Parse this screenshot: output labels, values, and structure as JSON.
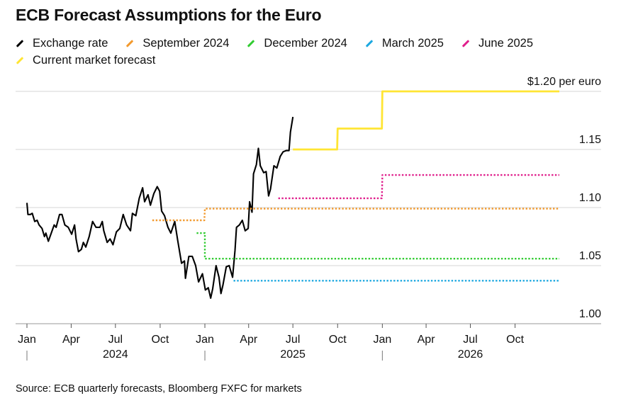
{
  "chart_data": {
    "type": "line",
    "title": "ECB Forecast Assumptions for the Euro",
    "y_unit_label": "$1.20 per euro",
    "ylim": [
      1.0,
      1.2
    ],
    "y_ticks": [
      {
        "value": 1.2,
        "label": ""
      },
      {
        "value": 1.15,
        "label": "1.15"
      },
      {
        "value": 1.1,
        "label": "1.10"
      },
      {
        "value": 1.05,
        "label": "1.05"
      },
      {
        "value": 1.0,
        "label": "1.00"
      }
    ],
    "x_range": [
      "2024-01-01",
      "2026-12-31"
    ],
    "x_month_ticks": [
      {
        "date": "2024-01-01",
        "label": "Jan"
      },
      {
        "date": "2024-04-01",
        "label": "Apr"
      },
      {
        "date": "2024-07-01",
        "label": "Jul"
      },
      {
        "date": "2024-10-01",
        "label": "Oct"
      },
      {
        "date": "2025-01-01",
        "label": "Jan"
      },
      {
        "date": "2025-04-01",
        "label": "Apr"
      },
      {
        "date": "2025-07-01",
        "label": "Jul"
      },
      {
        "date": "2025-10-01",
        "label": "Oct"
      },
      {
        "date": "2026-01-01",
        "label": "Jan"
      },
      {
        "date": "2026-04-01",
        "label": "Apr"
      },
      {
        "date": "2026-07-01",
        "label": "Jul"
      },
      {
        "date": "2026-10-01",
        "label": "Oct"
      }
    ],
    "x_year_labels": [
      {
        "date": "2024-07-01",
        "label": "2024"
      },
      {
        "date": "2025-07-01",
        "label": "2025"
      },
      {
        "date": "2026-07-01",
        "label": "2026"
      }
    ],
    "x_year_separators": [
      "2024-01-01",
      "2025-01-01",
      "2026-01-01"
    ],
    "grid": "horizontal",
    "legend_position": "top",
    "series": [
      {
        "name": "Exchange rate",
        "color": "#000000",
        "style": "solid",
        "points": [
          [
            "2024-01-01",
            1.104
          ],
          [
            "2024-01-03",
            1.094
          ],
          [
            "2024-01-08",
            1.094
          ],
          [
            "2024-01-12",
            1.095
          ],
          [
            "2024-01-17",
            1.088
          ],
          [
            "2024-01-22",
            1.089
          ],
          [
            "2024-01-26",
            1.085
          ],
          [
            "2024-02-01",
            1.082
          ],
          [
            "2024-02-06",
            1.075
          ],
          [
            "2024-02-09",
            1.078
          ],
          [
            "2024-02-14",
            1.071
          ],
          [
            "2024-02-20",
            1.078
          ],
          [
            "2024-02-26",
            1.085
          ],
          [
            "2024-03-01",
            1.083
          ],
          [
            "2024-03-08",
            1.094
          ],
          [
            "2024-03-13",
            1.094
          ],
          [
            "2024-03-19",
            1.085
          ],
          [
            "2024-03-26",
            1.083
          ],
          [
            "2024-04-02",
            1.077
          ],
          [
            "2024-04-08",
            1.085
          ],
          [
            "2024-04-11",
            1.073
          ],
          [
            "2024-04-16",
            1.062
          ],
          [
            "2024-04-22",
            1.064
          ],
          [
            "2024-04-26",
            1.07
          ],
          [
            "2024-05-01",
            1.066
          ],
          [
            "2024-05-08",
            1.075
          ],
          [
            "2024-05-15",
            1.088
          ],
          [
            "2024-05-22",
            1.083
          ],
          [
            "2024-05-30",
            1.083
          ],
          [
            "2024-06-04",
            1.088
          ],
          [
            "2024-06-07",
            1.08
          ],
          [
            "2024-06-14",
            1.07
          ],
          [
            "2024-06-20",
            1.073
          ],
          [
            "2024-06-26",
            1.068
          ],
          [
            "2024-07-03",
            1.079
          ],
          [
            "2024-07-10",
            1.082
          ],
          [
            "2024-07-17",
            1.094
          ],
          [
            "2024-07-24",
            1.085
          ],
          [
            "2024-08-01",
            1.08
          ],
          [
            "2024-08-05",
            1.095
          ],
          [
            "2024-08-12",
            1.093
          ],
          [
            "2024-08-19",
            1.108
          ],
          [
            "2024-08-26",
            1.117
          ],
          [
            "2024-08-30",
            1.105
          ],
          [
            "2024-09-06",
            1.111
          ],
          [
            "2024-09-11",
            1.102
          ],
          [
            "2024-09-18",
            1.112
          ],
          [
            "2024-09-25",
            1.118
          ],
          [
            "2024-09-30",
            1.114
          ],
          [
            "2024-10-04",
            1.097
          ],
          [
            "2024-10-10",
            1.093
          ],
          [
            "2024-10-17",
            1.083
          ],
          [
            "2024-10-23",
            1.078
          ],
          [
            "2024-10-31",
            1.088
          ],
          [
            "2024-11-06",
            1.072
          ],
          [
            "2024-11-14",
            1.052
          ],
          [
            "2024-11-20",
            1.054
          ],
          [
            "2024-11-22",
            1.039
          ],
          [
            "2024-11-29",
            1.058
          ],
          [
            "2024-12-06",
            1.058
          ],
          [
            "2024-12-13",
            1.05
          ],
          [
            "2024-12-19",
            1.036
          ],
          [
            "2024-12-27",
            1.043
          ],
          [
            "2025-01-02",
            1.029
          ],
          [
            "2025-01-08",
            1.031
          ],
          [
            "2025-01-13",
            1.022
          ],
          [
            "2025-01-17",
            1.03
          ],
          [
            "2025-01-24",
            1.05
          ],
          [
            "2025-01-30",
            1.04
          ],
          [
            "2025-02-03",
            1.026
          ],
          [
            "2025-02-07",
            1.033
          ],
          [
            "2025-02-14",
            1.049
          ],
          [
            "2025-02-20",
            1.05
          ],
          [
            "2025-02-27",
            1.04
          ],
          [
            "2025-03-04",
            1.063
          ],
          [
            "2025-03-07",
            1.083
          ],
          [
            "2025-03-13",
            1.085
          ],
          [
            "2025-03-19",
            1.089
          ],
          [
            "2025-03-25",
            1.08
          ],
          [
            "2025-03-31",
            1.082
          ],
          [
            "2025-04-03",
            1.105
          ],
          [
            "2025-04-08",
            1.096
          ],
          [
            "2025-04-11",
            1.129
          ],
          [
            "2025-04-17",
            1.137
          ],
          [
            "2025-04-21",
            1.151
          ],
          [
            "2025-04-25",
            1.136
          ],
          [
            "2025-05-02",
            1.13
          ],
          [
            "2025-05-07",
            1.131
          ],
          [
            "2025-05-12",
            1.11
          ],
          [
            "2025-05-16",
            1.116
          ],
          [
            "2025-05-23",
            1.136
          ],
          [
            "2025-05-29",
            1.134
          ],
          [
            "2025-06-05",
            1.144
          ],
          [
            "2025-06-11",
            1.148
          ],
          [
            "2025-06-17",
            1.149
          ],
          [
            "2025-06-23",
            1.149
          ],
          [
            "2025-06-26",
            1.165
          ],
          [
            "2025-07-01",
            1.178
          ]
        ]
      },
      {
        "name": "September 2024",
        "color": "#f29a2e",
        "style": "dotted",
        "points": [
          [
            "2024-09-15",
            1.089
          ],
          [
            "2024-12-31",
            1.089
          ],
          [
            "2025-01-01",
            1.099
          ],
          [
            "2026-12-31",
            1.099
          ]
        ]
      },
      {
        "name": "December 2024",
        "color": "#33cc33",
        "style": "dotted",
        "points": [
          [
            "2024-12-15",
            1.078
          ],
          [
            "2025-01-01",
            1.078
          ],
          [
            "2025-01-01",
            1.056
          ],
          [
            "2026-12-31",
            1.056
          ]
        ]
      },
      {
        "name": "March 2025",
        "color": "#1ca8e0",
        "style": "dotted",
        "points": [
          [
            "2025-03-01",
            1.037
          ],
          [
            "2026-12-31",
            1.037
          ]
        ]
      },
      {
        "name": "June 2025",
        "color": "#e01f8c",
        "style": "dotted",
        "points": [
          [
            "2025-06-01",
            1.108
          ],
          [
            "2025-12-31",
            1.108
          ],
          [
            "2026-01-01",
            1.128
          ],
          [
            "2026-12-31",
            1.128
          ]
        ]
      },
      {
        "name": "Current market forecast",
        "color": "#ffe534",
        "style": "solid",
        "points": [
          [
            "2025-07-01",
            1.15
          ],
          [
            "2025-09-30",
            1.15
          ],
          [
            "2025-10-01",
            1.168
          ],
          [
            "2025-12-31",
            1.168
          ],
          [
            "2026-01-01",
            1.2
          ],
          [
            "2026-12-31",
            1.2
          ]
        ]
      }
    ]
  },
  "legend": {
    "rows": [
      [
        {
          "label": "Exchange rate",
          "color": "#000000"
        },
        {
          "label": "September 2024",
          "color": "#f29a2e"
        },
        {
          "label": "December 2024",
          "color": "#33cc33"
        },
        {
          "label": "March 2025",
          "color": "#1ca8e0"
        },
        {
          "label": "June 2025",
          "color": "#e01f8c"
        }
      ],
      [
        {
          "label": "Current market forecast",
          "color": "#ffe534"
        }
      ]
    ]
  },
  "source_text": "Source: ECB quarterly forecasts, Bloomberg FXFC for markets"
}
